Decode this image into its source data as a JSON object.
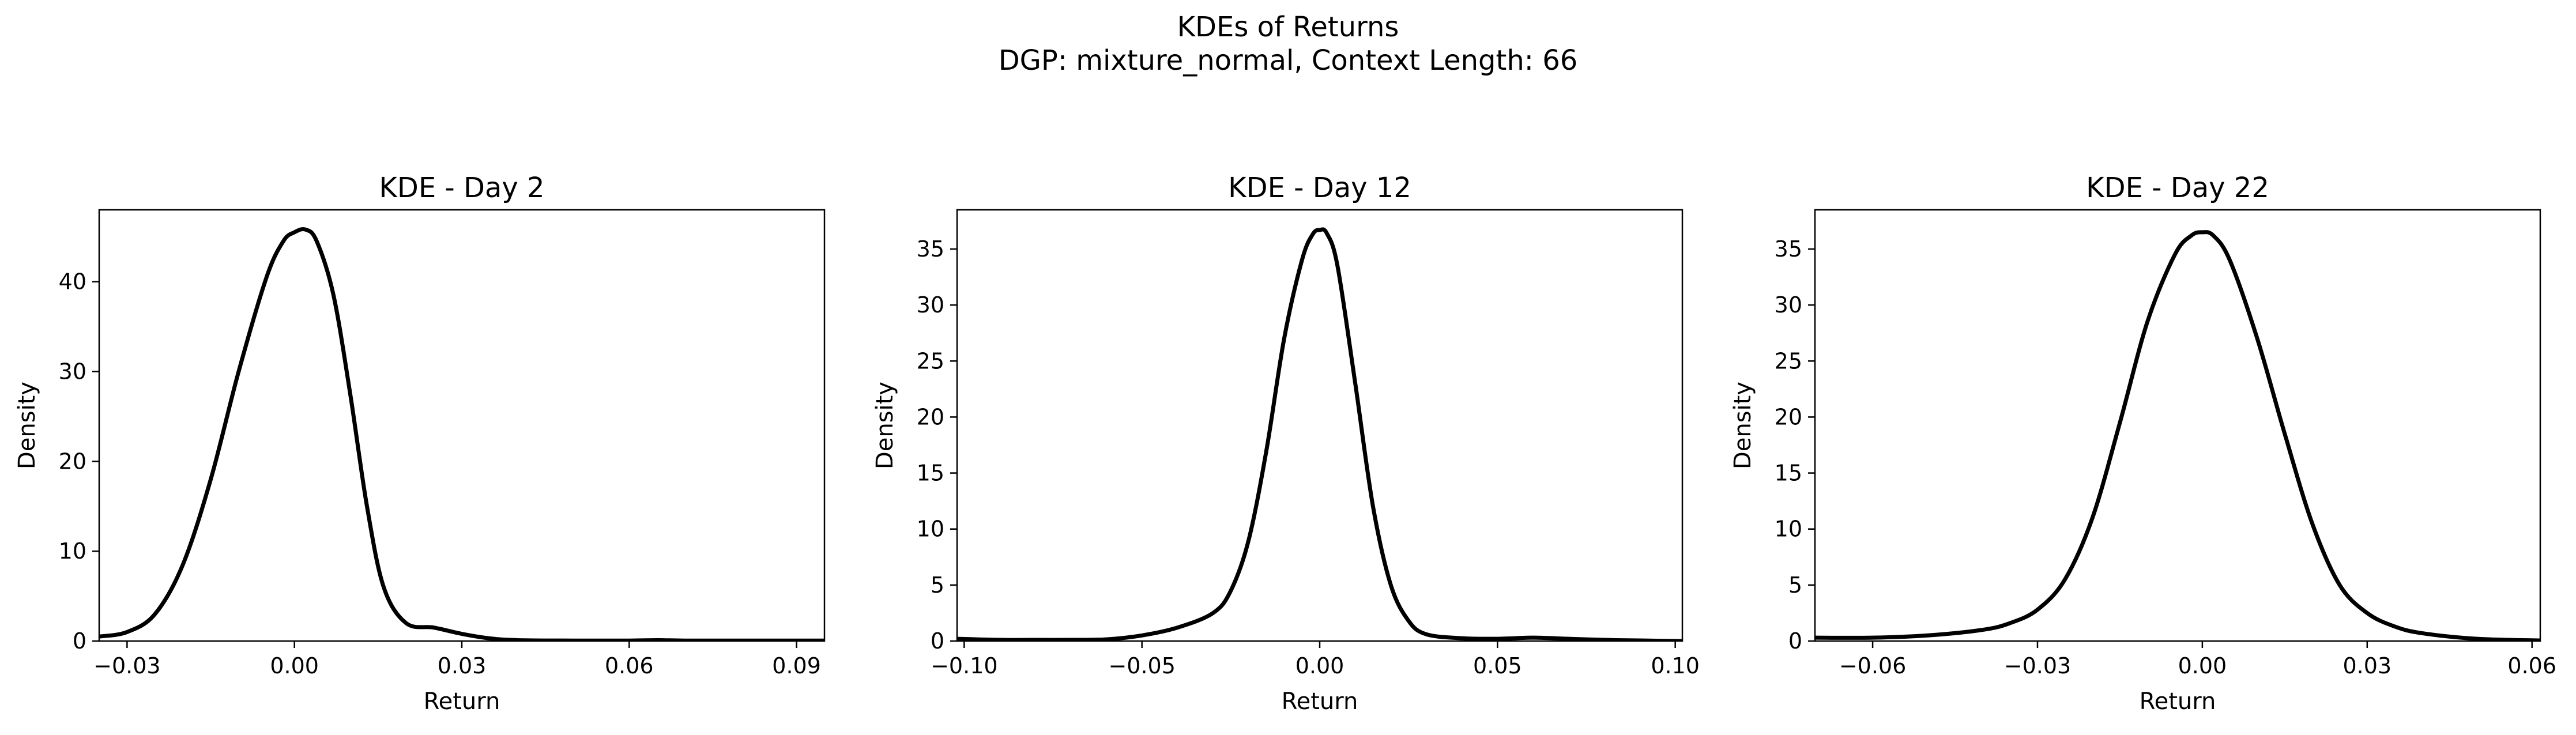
{
  "figure": {
    "title_line1": "KDEs of Returns",
    "title_line2": "DGP: mixture_normal, Context Length: 66"
  },
  "colors": {
    "line": "#000000",
    "axes": "#000000",
    "background": "#ffffff"
  },
  "chart_data": [
    {
      "type": "line",
      "title": "KDE - Day 2",
      "xlabel": "Return",
      "ylabel": "Density",
      "xlim": [
        -0.035,
        0.095
      ],
      "ylim": [
        0,
        48
      ],
      "xticks": [
        -0.03,
        0.0,
        0.03,
        0.06,
        0.09
      ],
      "xtick_labels": [
        "−0.03",
        "0.00",
        "0.03",
        "0.06",
        "0.09"
      ],
      "yticks": [
        0,
        10,
        20,
        30,
        40
      ],
      "ytick_labels": [
        "0",
        "10",
        "20",
        "30",
        "40"
      ],
      "grid": false,
      "series": [
        {
          "x": [
            -0.035,
            -0.03,
            -0.025,
            -0.02,
            -0.015,
            -0.01,
            -0.005,
            -0.002,
            0.0,
            0.002,
            0.004,
            0.007,
            0.01,
            0.013,
            0.016,
            0.02,
            0.025,
            0.03,
            0.035,
            0.04,
            0.05,
            0.06,
            0.065,
            0.07,
            0.08,
            0.09,
            0.095
          ],
          "y": [
            0.5,
            1.0,
            3.0,
            8.5,
            18.0,
            30.0,
            40.5,
            44.5,
            45.5,
            45.8,
            44.5,
            38.5,
            27.5,
            15.0,
            6.0,
            2.0,
            1.5,
            0.8,
            0.3,
            0.1,
            0.05,
            0.05,
            0.1,
            0.05,
            0.05,
            0.05,
            0.05
          ]
        }
      ]
    },
    {
      "type": "line",
      "title": "KDE - Day 12",
      "xlabel": "Return",
      "ylabel": "Density",
      "xlim": [
        -0.102,
        0.102
      ],
      "ylim": [
        0,
        38.5
      ],
      "xticks": [
        -0.1,
        -0.05,
        0.0,
        0.05,
        0.1
      ],
      "xtick_labels": [
        "−0.10",
        "−0.05",
        "0.00",
        "0.05",
        "0.10"
      ],
      "yticks": [
        0,
        5,
        10,
        15,
        20,
        25,
        30,
        35
      ],
      "ytick_labels": [
        "0",
        "5",
        "10",
        "15",
        "20",
        "25",
        "30",
        "35"
      ],
      "grid": false,
      "series": [
        {
          "x": [
            -0.102,
            -0.09,
            -0.08,
            -0.07,
            -0.06,
            -0.05,
            -0.04,
            -0.03,
            -0.025,
            -0.02,
            -0.015,
            -0.01,
            -0.005,
            -0.002,
            0.0,
            0.002,
            0.005,
            0.01,
            0.015,
            0.02,
            0.025,
            0.03,
            0.04,
            0.05,
            0.06,
            0.07,
            0.08,
            0.09,
            0.102
          ],
          "y": [
            0.2,
            0.1,
            0.1,
            0.1,
            0.15,
            0.5,
            1.2,
            2.5,
            4.5,
            9.0,
            17.0,
            27.0,
            34.0,
            36.3,
            36.7,
            36.4,
            33.5,
            23.0,
            12.0,
            5.0,
            1.8,
            0.6,
            0.25,
            0.2,
            0.3,
            0.2,
            0.1,
            0.05,
            0.0
          ]
        }
      ]
    },
    {
      "type": "line",
      "title": "KDE - Day 22",
      "xlabel": "Return",
      "ylabel": "Density",
      "xlim": [
        -0.0705,
        0.0615
      ],
      "ylim": [
        0,
        38.5
      ],
      "xticks": [
        -0.06,
        -0.03,
        0.0,
        0.03,
        0.06
      ],
      "xtick_labels": [
        "−0.06",
        "−0.03",
        "0.00",
        "0.03",
        "0.06"
      ],
      "yticks": [
        0,
        5,
        10,
        15,
        20,
        25,
        30,
        35
      ],
      "ytick_labels": [
        "0",
        "5",
        "10",
        "15",
        "20",
        "25",
        "30",
        "35"
      ],
      "grid": false,
      "series": [
        {
          "x": [
            -0.0705,
            -0.06,
            -0.05,
            -0.04,
            -0.035,
            -0.03,
            -0.025,
            -0.02,
            -0.015,
            -0.01,
            -0.005,
            -0.002,
            0.0,
            0.002,
            0.005,
            0.01,
            0.015,
            0.02,
            0.025,
            0.03,
            0.035,
            0.04,
            0.05,
            0.0615
          ],
          "y": [
            0.3,
            0.3,
            0.5,
            1.0,
            1.6,
            2.8,
            5.5,
            11.0,
            19.5,
            28.5,
            34.5,
            36.2,
            36.5,
            36.2,
            34.0,
            27.0,
            18.5,
            10.5,
            5.0,
            2.5,
            1.3,
            0.7,
            0.2,
            0.05
          ]
        }
      ]
    }
  ]
}
